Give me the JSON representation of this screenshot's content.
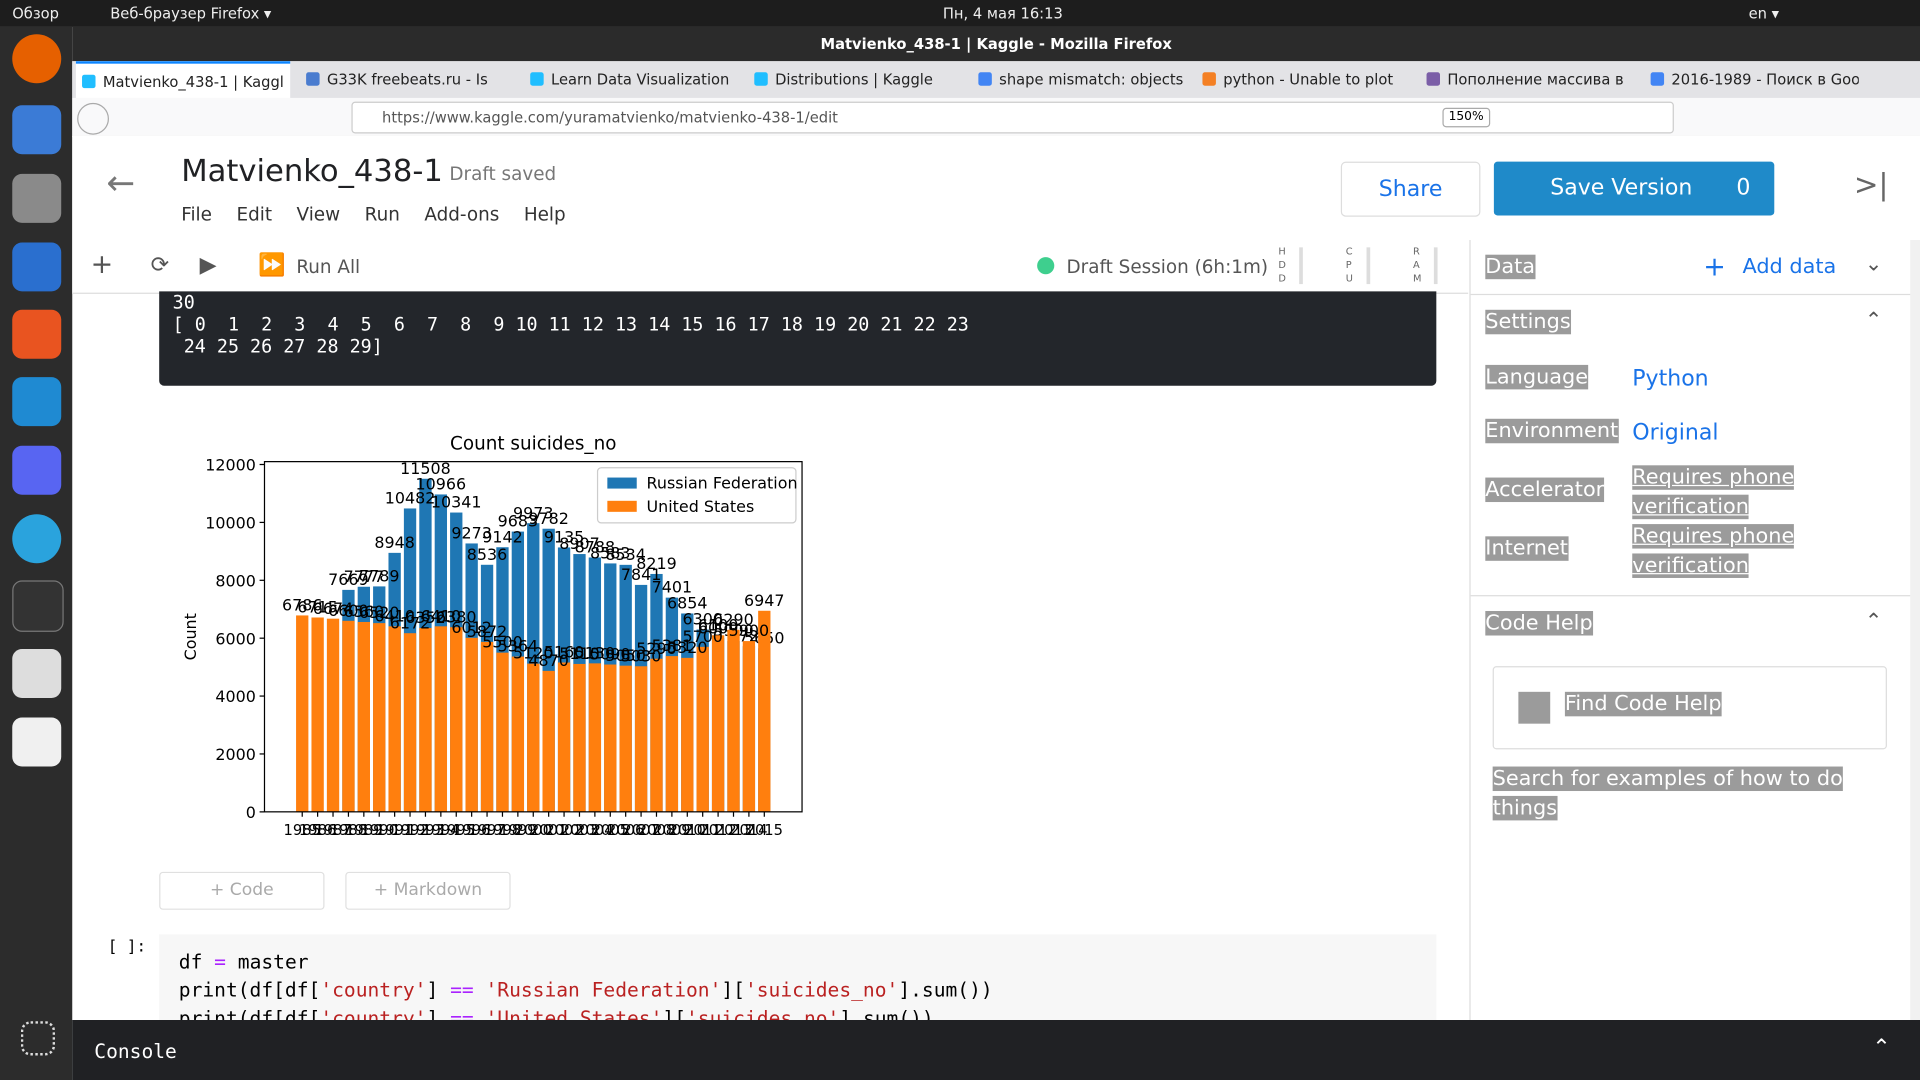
{
  "chart_data": {
    "type": "bar",
    "title": "Count suicides_no",
    "ylabel": "Count",
    "categories": [
      "1985",
      "1986",
      "1987",
      "1988",
      "1989",
      "1990",
      "1991",
      "1992",
      "1993",
      "1994",
      "1995",
      "1996",
      "1997",
      "1998",
      "1999",
      "2000",
      "2001",
      "2002",
      "2003",
      "2004",
      "2005",
      "2006",
      "2007",
      "2008",
      "2009",
      "2010",
      "2011",
      "2012",
      "2013",
      "2014",
      "2015"
    ],
    "series": [
      {
        "name": "Russian Federation",
        "color": "#1f77b4",
        "values": [
          0,
          0,
          0,
          7669,
          7777,
          7789,
          8948,
          10482,
          11508,
          10966,
          10341,
          9273,
          8536,
          9142,
          9683,
          9973,
          9782,
          9135,
          8907,
          8788,
          8583,
          8534,
          7841,
          8219,
          7401,
          6854,
          6300,
          6000,
          5900,
          5724,
          5650
        ]
      },
      {
        "name": "United States",
        "color": "#ff7f0e",
        "values": [
          6786,
          6715,
          6674,
          6600,
          6560,
          6520,
          6410,
          6172,
          6352,
          6410,
          6380,
          6012,
          5872,
          5500,
          5364,
          5120,
          4870,
          5160,
          5110,
          5130,
          5090,
          5050,
          5030,
          5290,
          5381,
          5320,
          5700,
          6100,
          6290,
          5900,
          6947
        ]
      }
    ],
    "ylim": [
      0,
      12100
    ],
    "yticks": [
      0,
      2000,
      4000,
      6000,
      8000,
      10000,
      12000
    ],
    "legend": "upper right",
    "grid": false
  },
  "ui": {
    "topbar": {
      "activities": "Обзор",
      "app": "Веб-браузер Firefox ▾",
      "clock": "Пн, 4 мая  16:13",
      "lang": "en ▾"
    },
    "window_title": "Matvienko_438-1 | Kaggle - Mozilla Firefox",
    "tabs": [
      "Matvienko_438-1 | Kaggl",
      "G33K freebeats.ru - Is",
      "Learn Data Visualization",
      "Distributions | Kaggle",
      "shape mismatch: objects",
      "python - Unable to plot",
      "Пополнение массива в",
      "2016-1989 - Поиск в Goo"
    ],
    "url": "https://www.kaggle.com/yuramatvienko/matvienko-438-1/edit",
    "zoom": "150%",
    "notebook": {
      "title": "Matvienko_438-1",
      "status": "Draft saved",
      "share": "Share",
      "save": "Save Version",
      "save_count": "0",
      "menu": [
        "File",
        "Edit",
        "View",
        "Run",
        "Add-ons",
        "Help"
      ],
      "run_all": "Run All",
      "session": "Draft Session (6h:1m)",
      "meters": [
        "HDD",
        "CPU",
        "RAM"
      ]
    },
    "output": [
      "30",
      "[ 0  1  2  3  4  5  6  7  8  9 10 11 12 13 14 15 16 17 18 19 20 21 22 23",
      " 24 25 26 27 28 29]"
    ],
    "add_buttons": [
      "+ Code",
      "+ Markdown"
    ],
    "cell_prompt": "[ ]:",
    "code": [
      "df = master",
      "print(df[df['country'] == 'Russian Federation']['suicides_no'].sum())",
      "print(df[df['country'] == 'United States']['suicides_no'].sum())"
    ],
    "sidebar": {
      "data": "Data",
      "add_data": "Add data",
      "settings": "Settings",
      "rows": [
        {
          "label": "Language",
          "value": "Python"
        },
        {
          "label": "Environment",
          "value": "Original"
        },
        {
          "label": "Accelerator",
          "value": "Requires phone verification"
        },
        {
          "label": "Internet",
          "value": "Requires phone verification"
        }
      ],
      "code_help": "Code Help",
      "search_placeholder": "Find Code Help",
      "search_hint": "Search for examples of how to do things"
    },
    "console": "Console"
  }
}
